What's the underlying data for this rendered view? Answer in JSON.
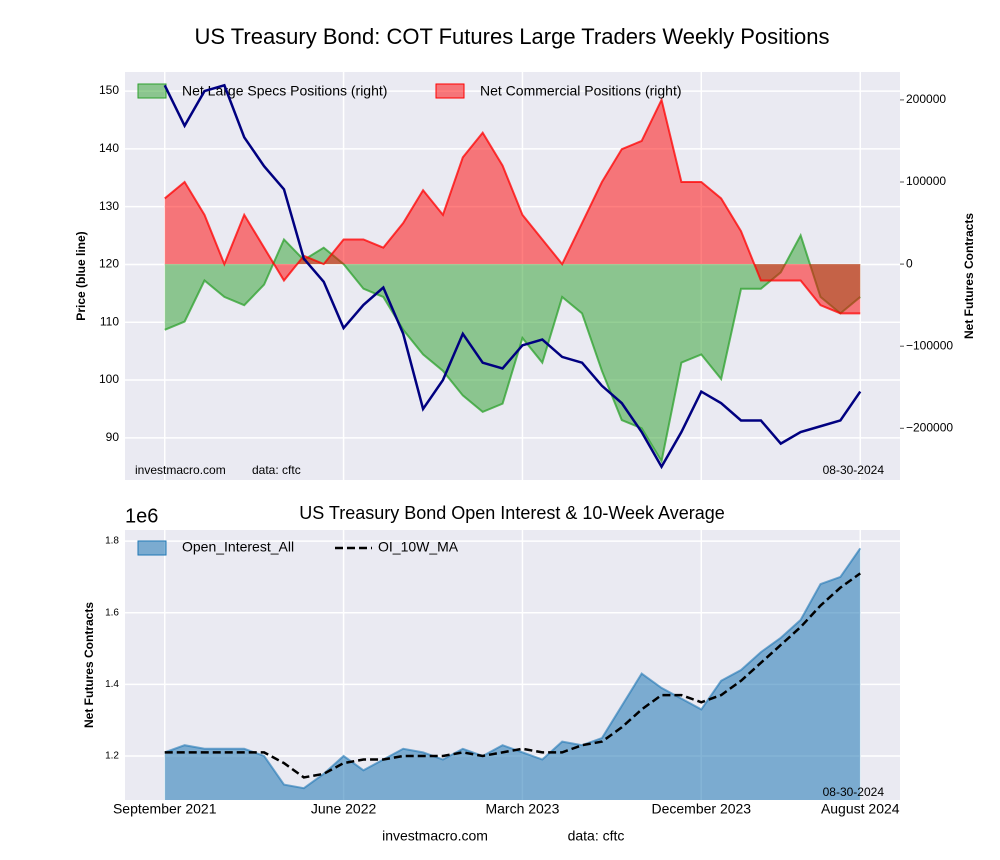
{
  "chart_data": [
    {
      "type": "combo",
      "title": "US Treasury Bond: COT Futures Large Traders Weekly Positions",
      "ylabel": "Price (blue line)",
      "y2label": "Net Futures Contracts",
      "source": "investmacro.com",
      "data_note": "data: cftc",
      "date": "08-30-2024",
      "grid": true,
      "legend": "upper left",
      "x": [
        "2021-09",
        "2021-10",
        "2021-11",
        "2021-12",
        "2022-01",
        "2022-02",
        "2022-03",
        "2022-04",
        "2022-05",
        "2022-06",
        "2022-07",
        "2022-08",
        "2022-09",
        "2022-10",
        "2022-11",
        "2022-12",
        "2023-01",
        "2023-02",
        "2023-03",
        "2023-04",
        "2023-05",
        "2023-06",
        "2023-07",
        "2023-08",
        "2023-09",
        "2023-10",
        "2023-11",
        "2023-12",
        "2024-01",
        "2024-02",
        "2024-03",
        "2024-04",
        "2024-05",
        "2024-06",
        "2024-07",
        "2024-08"
      ],
      "xlim": [
        "2021-07",
        "2024-10"
      ],
      "ylim": [
        82.7,
        153.3
      ],
      "yticks": [
        90,
        100,
        110,
        120,
        130,
        140,
        150
      ],
      "y2lim": [
        -263000,
        234000
      ],
      "y2ticks": [
        {
          "value": -200000,
          "label": "−200000"
        },
        {
          "value": -100000,
          "label": "−100000"
        },
        0,
        100000,
        200000
      ],
      "price": {
        "color": "#000080",
        "values": [
          151,
          144,
          150,
          151,
          142,
          137,
          133,
          121,
          117,
          109,
          113,
          116,
          108,
          95,
          100,
          108,
          103,
          102,
          106,
          107,
          104,
          103,
          99,
          96,
          91,
          85,
          91,
          98,
          96,
          93,
          93,
          89,
          91,
          92,
          93,
          98
        ]
      },
      "series": [
        {
          "name": "Net Large Specs Positions (right)",
          "color": "#2ca02c",
          "axis": "y2",
          "values": [
            -80000,
            -70000,
            -20000,
            -40000,
            -50000,
            -25000,
            30000,
            5000,
            20000,
            0,
            -30000,
            -40000,
            -80000,
            -110000,
            -130000,
            -160000,
            -180000,
            -170000,
            -90000,
            -120000,
            -40000,
            -60000,
            -130000,
            -190000,
            -200000,
            -240000,
            -120000,
            -110000,
            -140000,
            -30000,
            -30000,
            -10000,
            35000,
            -40000,
            -60000,
            -40000
          ]
        },
        {
          "name": "Net Commercial Positions (right)",
          "color": "#ff0000",
          "axis": "y2",
          "values": [
            80000,
            100000,
            60000,
            0,
            60000,
            20000,
            -20000,
            10000,
            0,
            30000,
            30000,
            20000,
            50000,
            90000,
            60000,
            130000,
            160000,
            120000,
            60000,
            30000,
            0,
            50000,
            100000,
            140000,
            150000,
            200000,
            100000,
            100000,
            80000,
            40000,
            -20000,
            -20000,
            -20000,
            -50000,
            -60000,
            -60000
          ]
        }
      ]
    },
    {
      "type": "area",
      "title": "US Treasury Bond Open Interest & 10-Week Average",
      "offset": "1e6",
      "ylabel": "Net Futures Contracts",
      "source": "investmacro.com",
      "data_note": "data: cftc",
      "date": "08-30-2024",
      "grid": true,
      "legend": "upper left",
      "x": [
        "2021-09",
        "2021-10",
        "2021-11",
        "2021-12",
        "2022-01",
        "2022-02",
        "2022-03",
        "2022-04",
        "2022-05",
        "2022-06",
        "2022-07",
        "2022-08",
        "2022-09",
        "2022-10",
        "2022-11",
        "2022-12",
        "2023-01",
        "2023-02",
        "2023-03",
        "2023-04",
        "2023-05",
        "2023-06",
        "2023-07",
        "2023-08",
        "2023-09",
        "2023-10",
        "2023-11",
        "2023-12",
        "2024-01",
        "2024-02",
        "2024-03",
        "2024-04",
        "2024-05",
        "2024-06",
        "2024-07",
        "2024-08"
      ],
      "xlim": [
        "2021-07",
        "2024-10"
      ],
      "xticks": [
        {
          "value": "2021-09",
          "label": "September 2021"
        },
        {
          "value": "2022-06",
          "label": "June 2022"
        },
        {
          "value": "2023-03",
          "label": "March 2023"
        },
        {
          "value": "2023-12",
          "label": "December 2023"
        },
        {
          "value": "2024-08",
          "label": "August 2024"
        }
      ],
      "ylim": [
        1.077,
        1.831
      ],
      "yticks": [
        1.2,
        1.4,
        1.6,
        1.8
      ],
      "series": [
        {
          "name": "Open_Interest_All",
          "color": "#1f77b4",
          "style": "area",
          "values": [
            1.21,
            1.23,
            1.22,
            1.22,
            1.22,
            1.2,
            1.12,
            1.11,
            1.15,
            1.2,
            1.16,
            1.19,
            1.22,
            1.21,
            1.19,
            1.22,
            1.2,
            1.23,
            1.21,
            1.19,
            1.24,
            1.23,
            1.25,
            1.34,
            1.43,
            1.39,
            1.36,
            1.33,
            1.41,
            1.44,
            1.49,
            1.53,
            1.58,
            1.68,
            1.7,
            1.78
          ]
        },
        {
          "name": "OI_10W_MA",
          "color": "#000000",
          "style": "dashed",
          "values": [
            1.21,
            1.21,
            1.21,
            1.21,
            1.21,
            1.21,
            1.18,
            1.14,
            1.15,
            1.18,
            1.19,
            1.19,
            1.2,
            1.2,
            1.2,
            1.21,
            1.2,
            1.21,
            1.22,
            1.21,
            1.21,
            1.23,
            1.24,
            1.28,
            1.33,
            1.37,
            1.37,
            1.35,
            1.37,
            1.41,
            1.46,
            1.51,
            1.56,
            1.62,
            1.67,
            1.71
          ]
        }
      ]
    }
  ]
}
